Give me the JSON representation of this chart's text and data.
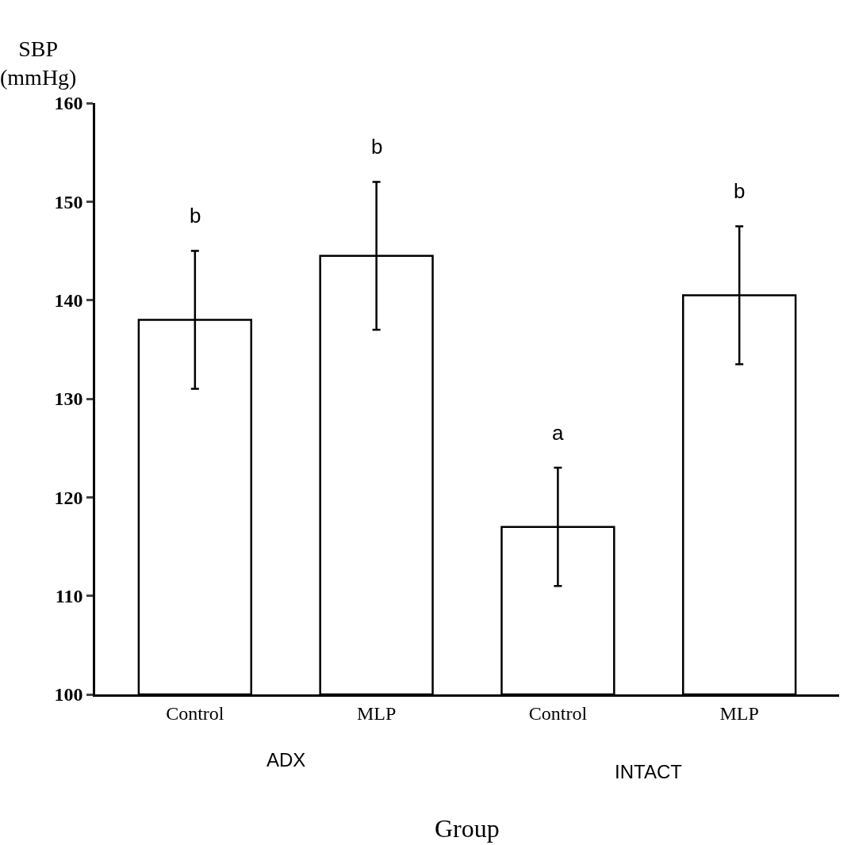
{
  "chart_data": {
    "type": "bar",
    "categories": [
      "Control",
      "MLP",
      "Control",
      "MLP"
    ],
    "values": [
      138,
      144.5,
      117,
      140.5
    ],
    "errors": [
      7,
      7.5,
      6,
      7
    ],
    "color": "#ffffff",
    "ylabel": "SBP\n(mmHg)",
    "xlabel": "Group",
    "ylim": [
      100,
      160
    ],
    "yticks": [
      100,
      110,
      120,
      130,
      140,
      150,
      160
    ],
    "legend": false,
    "annotations": [
      "b",
      "b",
      "a",
      "b",
      "ADX",
      "INTACT"
    ]
  }
}
